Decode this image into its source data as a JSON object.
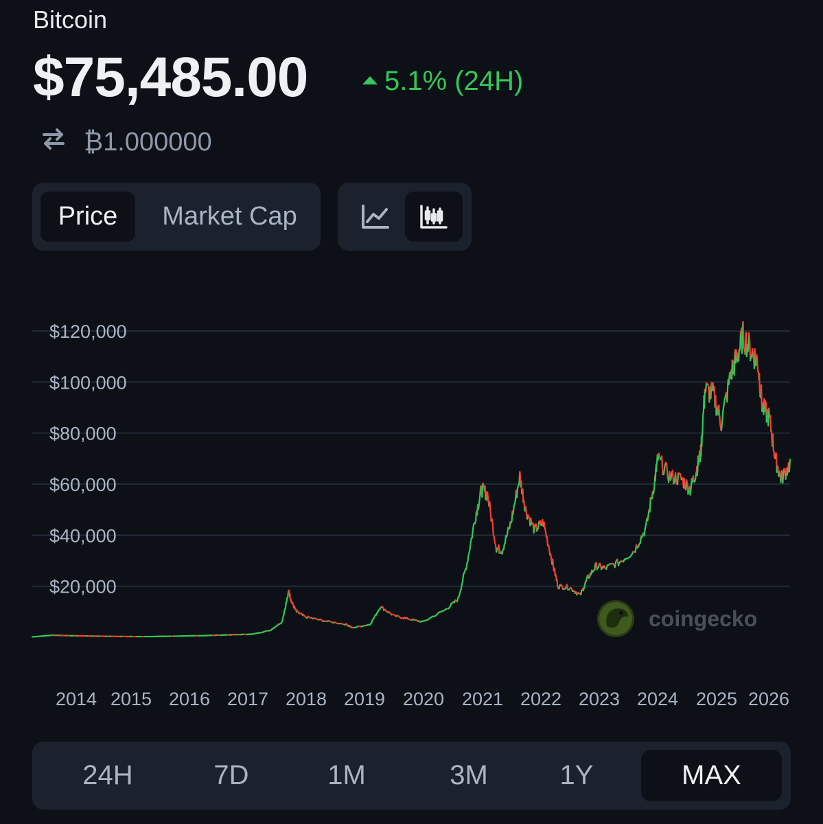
{
  "coin": {
    "name": "Bitcoin",
    "price": "$75,485.00",
    "change": "5.1% (24H)",
    "change_direction": "up",
    "conversion": "₿1.000000",
    "up_color": "#34c759",
    "down_color": "#ff3b30"
  },
  "tabs": {
    "price_label": "Price",
    "market_cap_label": "Market Cap",
    "active": "Price"
  },
  "chart_mode": {
    "options": [
      "line-chart-icon",
      "candlestick-icon"
    ],
    "active": "candlestick-icon"
  },
  "watermark": {
    "text": "coingecko"
  },
  "chart_data": {
    "type": "line",
    "style": "candlestick-colored",
    "x_tick_labels": [
      "2014",
      "2015",
      "2016",
      "2017",
      "2018",
      "2019",
      "2020",
      "2021",
      "2022",
      "2023",
      "2024",
      "2025",
      "2026"
    ],
    "y_tick_labels": [
      "$120,000",
      "$100,000",
      "$80,000",
      "$60,000",
      "$40,000",
      "$20,000"
    ],
    "y_ticks": [
      120000,
      100000,
      80000,
      60000,
      40000,
      20000
    ],
    "ylim": [
      0,
      125000
    ],
    "xlim": [
      2013.55,
      2026.45
    ],
    "grid": true,
    "series": [
      {
        "x": [
          2013.55,
          2013.9,
          2014.2,
          2014.6,
          2015.0,
          2015.5,
          2016.0,
          2016.5,
          2017.0,
          2017.3,
          2017.6,
          2017.8,
          2017.92,
          2017.96,
          2018.05,
          2018.2,
          2018.5,
          2018.9,
          2019.0,
          2019.3,
          2019.48,
          2019.7,
          2019.95,
          2020.2,
          2020.6,
          2020.8,
          2020.95,
          2021.1,
          2021.2,
          2021.3,
          2021.45,
          2021.55,
          2021.7,
          2021.85,
          2021.95,
          2022.1,
          2022.25,
          2022.4,
          2022.5,
          2022.7,
          2022.88,
          2023.0,
          2023.15,
          2023.3,
          2023.55,
          2023.8,
          2024.0,
          2024.15,
          2024.2,
          2024.4,
          2024.6,
          2024.75,
          2024.85,
          2024.93,
          2025.0,
          2025.15,
          2025.28,
          2025.45,
          2025.55,
          2025.65,
          2025.8,
          2025.9,
          2025.98,
          2026.1,
          2026.2,
          2026.3,
          2026.45
        ],
        "y": [
          120,
          800,
          600,
          450,
          300,
          240,
          430,
          650,
          1000,
          1200,
          2700,
          6000,
          18000,
          14000,
          10000,
          8000,
          6500,
          5000,
          3700,
          5000,
          12000,
          8500,
          7200,
          6000,
          11000,
          15000,
          29000,
          48000,
          58000,
          56000,
          35000,
          34000,
          45000,
          63000,
          50000,
          42000,
          45000,
          30000,
          20000,
          19500,
          16500,
          23000,
          28000,
          27000,
          29500,
          34000,
          43000,
          62000,
          70000,
          63000,
          62000,
          58000,
          65000,
          72000,
          97000,
          95000,
          84000,
          104000,
          110000,
          118000,
          112000,
          108000,
          90000,
          86000,
          70000,
          62000,
          68000
        ]
      }
    ]
  },
  "ranges": {
    "options": [
      "24H",
      "7D",
      "1M",
      "3M",
      "1Y",
      "MAX"
    ],
    "active": "MAX"
  }
}
